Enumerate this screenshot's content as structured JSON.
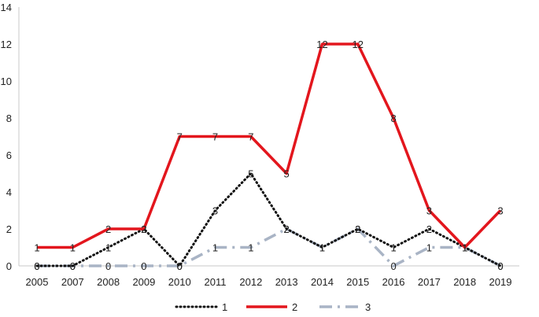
{
  "chart_data": {
    "type": "line",
    "title": "",
    "xlabel": "",
    "ylabel": "",
    "categories": [
      "2005",
      "2007",
      "2008",
      "2009",
      "2010",
      "2011",
      "2012",
      "2013",
      "2014",
      "2015",
      "2016",
      "2017",
      "2018",
      "2019"
    ],
    "ylim": [
      0,
      14
    ],
    "yticks": [
      0,
      2,
      4,
      6,
      8,
      10,
      12,
      14
    ],
    "grid": false,
    "legend": "bottom",
    "series": [
      {
        "name": "1",
        "color": "#111111",
        "style": "dotted",
        "labels": [
          "0",
          "0",
          "1",
          "2",
          "0",
          "3",
          "5",
          "2",
          "1",
          "2",
          "1",
          "2",
          "1",
          "0"
        ],
        "values": [
          0,
          0,
          1,
          2,
          0,
          3,
          5,
          2,
          1,
          2,
          1,
          2,
          1,
          0
        ]
      },
      {
        "name": "2",
        "color": "#e3161d",
        "style": "solid",
        "labels": [
          "1",
          "1",
          "2",
          "2",
          "7",
          "7",
          "7",
          "5",
          "12",
          "12",
          "8",
          "3",
          "1",
          "3"
        ],
        "values": [
          1,
          1,
          2,
          2,
          7,
          7,
          7,
          5,
          12,
          12,
          8,
          3,
          1,
          3
        ]
      },
      {
        "name": "3",
        "color": "#a9b4c5",
        "style": "dashdot",
        "labels": [
          "0",
          "0",
          "0",
          "0",
          "0",
          "1",
          "1",
          "2",
          "1",
          "2",
          "0",
          "1",
          "1",
          "0"
        ],
        "values": [
          0,
          0,
          0,
          0,
          0,
          1,
          1,
          2,
          1,
          2,
          0,
          1,
          1,
          0
        ]
      }
    ]
  }
}
